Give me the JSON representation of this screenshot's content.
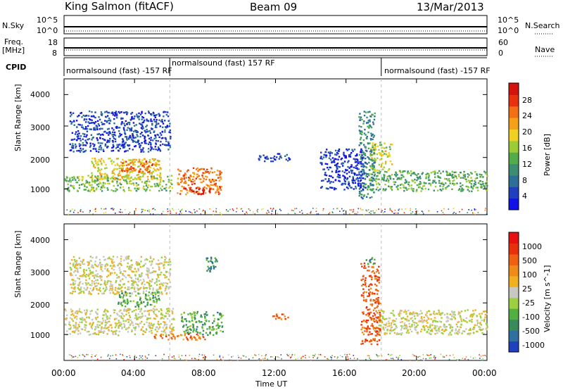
{
  "header": {
    "station": "King Salmon (fitACF)",
    "beam": "Beam 09",
    "date": "13/Mar/2013"
  },
  "side_labels": {
    "nsky": "N.Sky",
    "freq": "Freq.",
    "freq_unit": "[MHz]",
    "cpid": "CPID",
    "nsearch": "N.Search",
    "nave": "Nave"
  },
  "small_ticks": {
    "nsky_top": "10^5",
    "nsky_bottom": "10^0",
    "freq_top": "18",
    "freq_bottom": "8",
    "nsearch_top": "10^5",
    "nsearch_bottom": "10^0",
    "nave_top": "60",
    "nave_bottom": "0"
  },
  "cpid_segments": [
    {
      "label": "normalsound (fast) -157 RF",
      "start": "00:00",
      "end": "06:00"
    },
    {
      "label": "normalsound (fast) 157 RF",
      "start": "06:00",
      "end": "18:00"
    },
    {
      "label": "normalsound (fast) -157 RF",
      "start": "18:00",
      "end": "24:00"
    }
  ],
  "chart_data": [
    {
      "type": "heatmap",
      "title": "Power",
      "xlabel": "Time UT",
      "ylabel": "Slant Range [km]",
      "x_ticks": [
        "00:00",
        "04:00",
        "08:00",
        "12:00",
        "16:00",
        "20:00",
        "00:00"
      ],
      "y_ticks": [
        "1000",
        "2000",
        "3000",
        "4000"
      ],
      "xlim_hours": [
        0,
        24
      ],
      "ylim_km": [
        180,
        4500
      ],
      "colorbar": {
        "label": "Power [dB]",
        "ticks": [
          "4",
          "8",
          "12",
          "16",
          "20",
          "24",
          "28"
        ],
        "range": [
          0,
          30
        ],
        "colors": [
          "#1010e8",
          "#1f3fbf",
          "#2e6f9a",
          "#3c8e72",
          "#52ac4a",
          "#9ccc35",
          "#f0d020",
          "#f6a018",
          "#f26f14",
          "#e8320e",
          "#d4140c"
        ]
      },
      "regions": [
        {
          "t0": 0.0,
          "t1": 6.2,
          "r0": 950,
          "r1": 1450,
          "level": 0.45
        },
        {
          "t0": 1.5,
          "t1": 5.5,
          "r0": 1300,
          "r1": 2000,
          "level": 0.6
        },
        {
          "t0": 3.2,
          "t1": 5.0,
          "r0": 1550,
          "r1": 1900,
          "level": 0.8
        },
        {
          "t0": 6.4,
          "t1": 8.9,
          "r0": 850,
          "r1": 1700,
          "level": 0.75
        },
        {
          "t0": 6.8,
          "t1": 8.4,
          "r0": 850,
          "r1": 1050,
          "level": 0.95
        },
        {
          "t0": 0.3,
          "t1": 6.0,
          "r0": 2200,
          "r1": 3500,
          "level": 0.15
        },
        {
          "t0": 17.2,
          "t1": 24.0,
          "r0": 950,
          "r1": 1600,
          "level": 0.4
        },
        {
          "t0": 17.3,
          "t1": 18.6,
          "r0": 1600,
          "r1": 2500,
          "level": 0.55
        },
        {
          "t0": 16.7,
          "t1": 17.6,
          "r0": 700,
          "r1": 3500,
          "level": 0.3
        },
        {
          "t0": 11.0,
          "t1": 12.8,
          "r0": 1900,
          "r1": 2150,
          "level": 0.15
        },
        {
          "t0": 14.5,
          "t1": 17.0,
          "r0": 1000,
          "r1": 2300,
          "level": 0.12
        }
      ]
    },
    {
      "type": "heatmap",
      "title": "Velocity",
      "xlabel": "Time UT",
      "ylabel": "Slant Range [km]",
      "x_ticks": [
        "00:00",
        "04:00",
        "08:00",
        "12:00",
        "16:00",
        "20:00",
        "00:00"
      ],
      "y_ticks": [
        "1000",
        "2000",
        "3000",
        "4000"
      ],
      "xlim_hours": [
        0,
        24
      ],
      "ylim_km": [
        180,
        4500
      ],
      "colorbar": {
        "label": "Velocity [m s^-1]",
        "ticks": [
          "1000",
          "500",
          "100",
          "25",
          "-25",
          "-100",
          "-500",
          "-1000"
        ],
        "range": [
          -1200,
          1200
        ],
        "colors": [
          "#2040c0",
          "#3070a0",
          "#3a8a5a",
          "#50b040",
          "#9cd040",
          "#c8c8c0",
          "#f0b020",
          "#f08a18",
          "#f06010",
          "#e8300c",
          "#e81010"
        ]
      },
      "regions": [
        {
          "t0": 0.0,
          "t1": 6.2,
          "r0": 1000,
          "r1": 1850,
          "level": 0.5
        },
        {
          "t0": 3.0,
          "t1": 5.4,
          "r0": 1900,
          "r1": 2400,
          "level": 0.3
        },
        {
          "t0": 6.6,
          "t1": 9.0,
          "r0": 1000,
          "r1": 1750,
          "level": 0.3
        },
        {
          "t0": 5.0,
          "t1": 8.0,
          "r0": 850,
          "r1": 1050,
          "level": 0.75
        },
        {
          "t0": 8.0,
          "t1": 8.7,
          "r0": 3000,
          "r1": 3500,
          "level": 0.22
        },
        {
          "t0": 17.8,
          "t1": 24.0,
          "r0": 1000,
          "r1": 1800,
          "level": 0.5
        },
        {
          "t0": 16.8,
          "t1": 17.9,
          "r0": 700,
          "r1": 3300,
          "level": 0.78
        },
        {
          "t0": 17.1,
          "t1": 17.6,
          "r0": 3200,
          "r1": 3500,
          "level": 0.25
        },
        {
          "t0": 11.7,
          "t1": 12.7,
          "r0": 1500,
          "r1": 1700,
          "level": 0.8
        },
        {
          "t0": 0.3,
          "t1": 6.0,
          "r0": 2300,
          "r1": 3500,
          "level": 0.5
        }
      ]
    }
  ]
}
